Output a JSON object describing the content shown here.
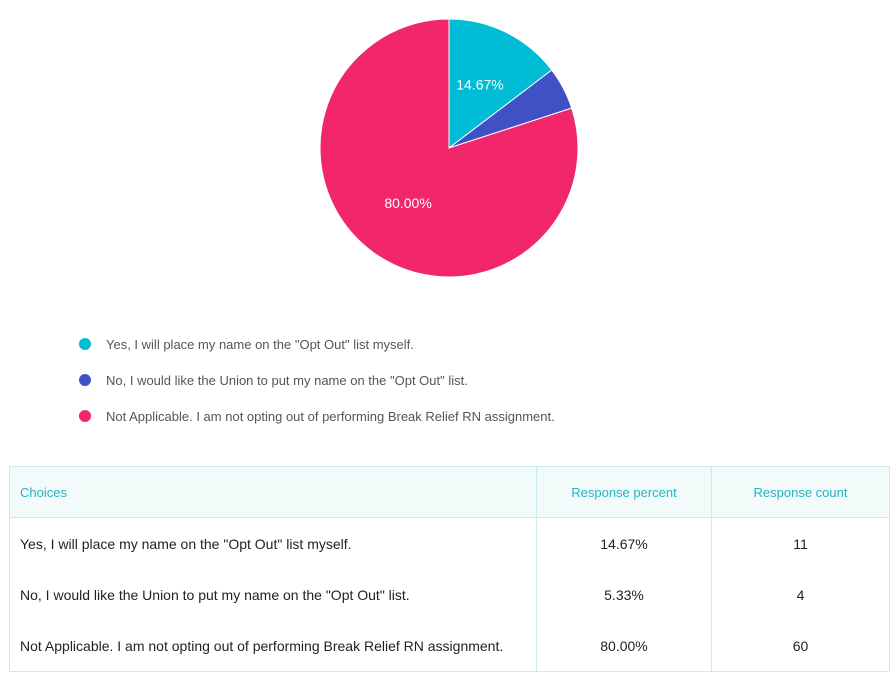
{
  "chart_data": {
    "type": "pie",
    "slices": [
      {
        "label": "Yes, I will place my name on the \"Opt Out\" list myself.",
        "value": 14.67,
        "display": "14.67%",
        "color": "#00bcd4"
      },
      {
        "label": "No, I would like the Union to put my name on the \"Opt Out\" list.",
        "value": 5.33,
        "display": "5.33%",
        "color": "#3f51c4"
      },
      {
        "label": "Not Applicable. I am not opting out of performing Break Relief RN assignment.",
        "value": 80.0,
        "display": "80.00%",
        "color": "#f2266b"
      }
    ],
    "legend_position": "bottom"
  },
  "legend": [
    {
      "label": "Yes, I will place my name on the \"Opt Out\" list myself.",
      "color": "#00bcd4"
    },
    {
      "label": "No, I would like the Union to put my name on the \"Opt Out\" list.",
      "color": "#3f51c4"
    },
    {
      "label": "Not Applicable. I am not opting out of performing Break Relief RN assignment.",
      "color": "#f2266b"
    }
  ],
  "table": {
    "headers": {
      "choices": "Choices",
      "percent": "Response percent",
      "count": "Response count"
    },
    "rows": [
      {
        "choice": "Yes, I will place my name on the \"Opt Out\" list myself.",
        "percent": "14.67%",
        "count": "11"
      },
      {
        "choice": "No, I would like the Union to put my name on the \"Opt Out\" list.",
        "percent": "5.33%",
        "count": "4"
      },
      {
        "choice": "Not Applicable. I am not opting out of performing Break Relief RN assignment.",
        "percent": "80.00%",
        "count": "60"
      }
    ]
  }
}
